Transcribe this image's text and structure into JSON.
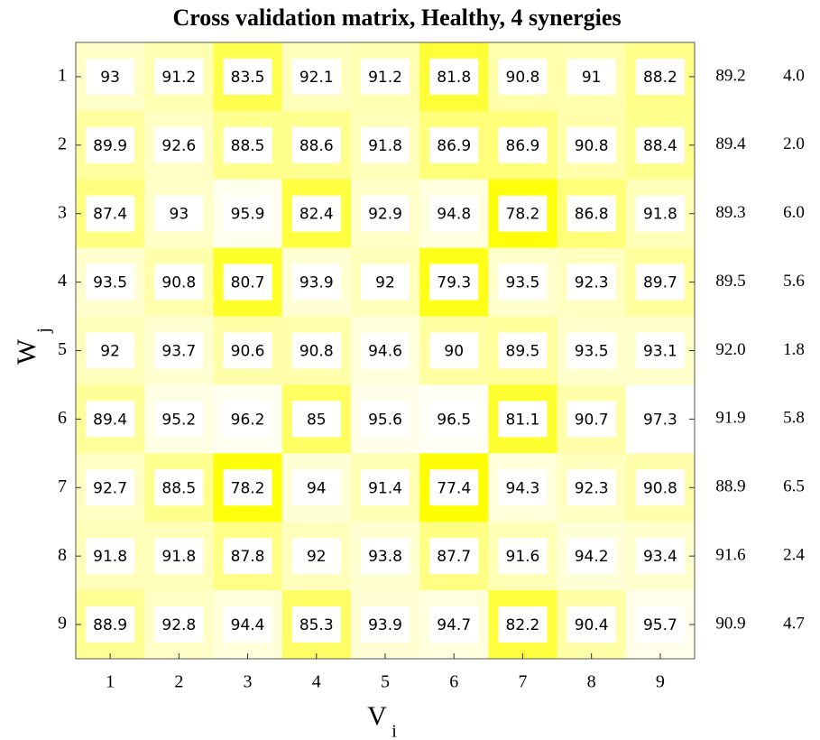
{
  "chart_data": {
    "type": "heatmap",
    "title": "Cross validation matrix, Healthy, 4 synergies",
    "x_categories": [
      "1",
      "2",
      "3",
      "4",
      "5",
      "6",
      "7",
      "8",
      "9"
    ],
    "y_categories": [
      "1",
      "2",
      "3",
      "4",
      "5",
      "6",
      "7",
      "8",
      "9"
    ],
    "xlabel": "V",
    "xlabel_sub": "i",
    "ylabel": "W",
    "ylabel_sub": "j",
    "colormap": [
      "#ffff00",
      "#ffffff"
    ],
    "values": [
      [
        93,
        91.2,
        83.5,
        92.1,
        91.2,
        81.8,
        90.8,
        91,
        88.2
      ],
      [
        89.9,
        92.6,
        88.5,
        88.6,
        91.8,
        86.9,
        86.9,
        90.8,
        88.4
      ],
      [
        87.4,
        93,
        95.9,
        82.4,
        92.9,
        94.8,
        78.2,
        86.8,
        91.8
      ],
      [
        93.5,
        90.8,
        80.7,
        93.9,
        92,
        79.3,
        93.5,
        92.3,
        89.7
      ],
      [
        92,
        93.7,
        90.6,
        90.8,
        94.6,
        90,
        89.5,
        93.5,
        93.1
      ],
      [
        89.4,
        95.2,
        96.2,
        85,
        95.6,
        96.5,
        81.1,
        90.7,
        97.3
      ],
      [
        92.7,
        88.5,
        78.2,
        94,
        91.4,
        77.4,
        94.3,
        92.3,
        90.8
      ],
      [
        91.8,
        91.8,
        87.8,
        92,
        93.8,
        87.7,
        91.6,
        94.2,
        93.4
      ],
      [
        88.9,
        92.8,
        94.4,
        85.3,
        93.9,
        94.7,
        82.2,
        90.4,
        95.7
      ]
    ],
    "row_mean": {
      "values": [
        89.2,
        89.4,
        89.3,
        89.5,
        92,
        91.9,
        88.9,
        91.6,
        90.9
      ],
      "value_labels": [
        "89.2",
        "89.4",
        "89.3",
        "89.5",
        "92.0",
        "91.9",
        "88.9",
        "91.6",
        "90.9"
      ]
    },
    "row_std": {
      "values": [
        4,
        2,
        6,
        5.6,
        1.8,
        5.8,
        6.5,
        2.4,
        4.7
      ],
      "value_labels": [
        "4.0",
        "2.0",
        "6.0",
        "5.6",
        "1.8",
        "5.8",
        "6.5",
        "2.4",
        "4.7"
      ]
    }
  }
}
